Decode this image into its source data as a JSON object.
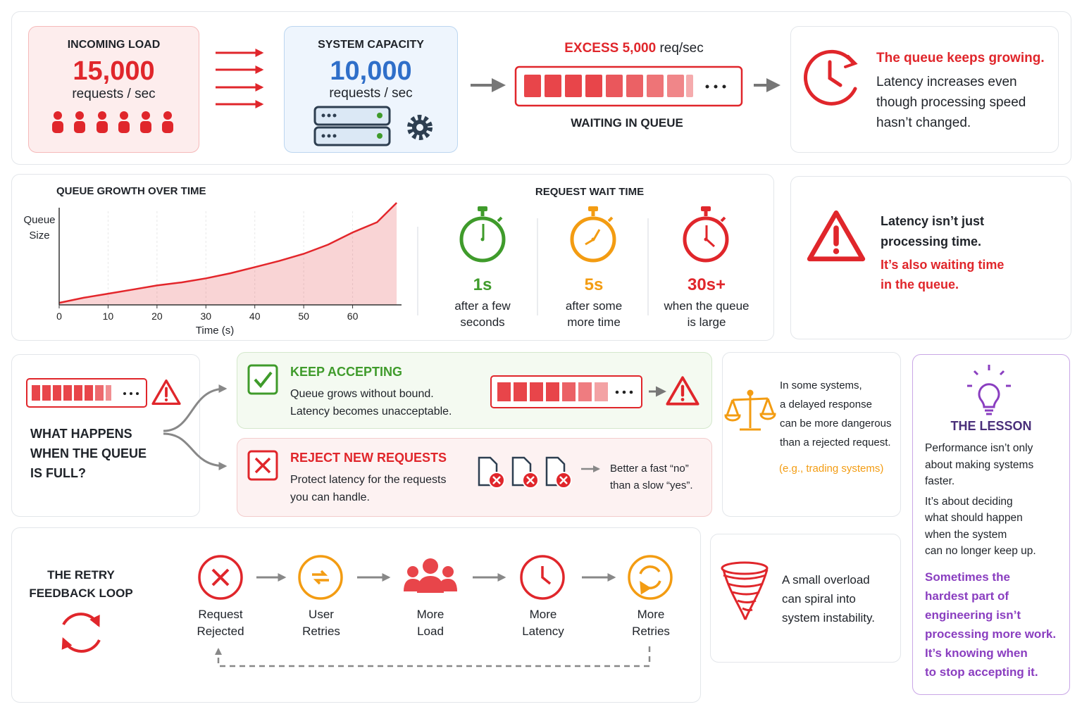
{
  "top": {
    "incoming": {
      "label": "INCOMING LOAD",
      "value": "15,000",
      "unit": "requests / sec"
    },
    "capacity": {
      "label": "SYSTEM CAPACITY",
      "value": "10,000",
      "unit": "requests / sec"
    },
    "excess": {
      "label": "EXCESS",
      "value": "5,000",
      "unit": "req/sec",
      "caption": "WAITING IN QUEUE"
    },
    "growing": {
      "title": "The queue keeps growing.",
      "lines": [
        "Latency increases even",
        "though processing speed",
        "hasn’t changed."
      ]
    }
  },
  "chart_data": {
    "type": "area",
    "title": "QUEUE GROWTH OVER TIME",
    "y_label": "Queue Size",
    "x_label": "Time (s)",
    "x": [
      0,
      5,
      10,
      15,
      20,
      25,
      30,
      35,
      40,
      45,
      50,
      55,
      60,
      65,
      69
    ],
    "values": [
      2,
      7,
      11,
      15,
      19,
      22,
      26,
      31,
      37,
      43,
      50,
      59,
      71,
      81,
      100
    ],
    "color": "#e3262b",
    "xlim": [
      0,
      70
    ],
    "ylim": [
      0,
      100
    ],
    "xticks": [
      0,
      10,
      20,
      30,
      40,
      50,
      60
    ],
    "grid": true
  },
  "wait": {
    "title": "REQUEST WAIT TIME",
    "items": [
      {
        "time": "1s",
        "color": "#3f9b2b",
        "lines": [
          "after a few",
          "seconds"
        ]
      },
      {
        "time": "5s",
        "color": "#f39c12",
        "lines": [
          "after some",
          "more time"
        ]
      },
      {
        "time": "30s+",
        "color": "#e0262b",
        "lines": [
          "when the queue",
          "is large"
        ]
      }
    ]
  },
  "note": {
    "lines": [
      "Latency isn’t just",
      "processing time."
    ],
    "highlight": [
      "It’s also waiting time",
      "in the queue."
    ]
  },
  "full": {
    "question": [
      "WHAT HAPPENS",
      "WHEN THE QUEUE",
      "IS FULL?"
    ],
    "accept": {
      "title": "KEEP ACCEPTING",
      "lines": [
        "Queue grows without bound.",
        "Latency becomes unacceptable."
      ]
    },
    "reject": {
      "title": "REJECT NEW REQUESTS",
      "lines": [
        "Protect latency for the requests",
        "you can handle."
      ],
      "quote": [
        "Better a fast “no”",
        "than a slow “yes”."
      ]
    }
  },
  "danger": {
    "lines": [
      "In some systems,",
      "a delayed response",
      "can be more dangerous",
      "than a rejected request."
    ],
    "example": "(e.g., trading systems)"
  },
  "lesson": {
    "title": "THE LESSON",
    "p1": [
      "Performance isn’t only",
      "about making systems",
      "faster."
    ],
    "p2": [
      "It’s about deciding",
      "what should happen",
      "when the system",
      "can no longer keep up."
    ],
    "emphasis": [
      "Sometimes the",
      "hardest part of",
      "engineering isn’t",
      "processing more work.",
      "It’s knowing when",
      "to stop accepting it."
    ]
  },
  "loop": {
    "title": [
      "THE RETRY",
      "FEEDBACK LOOP"
    ],
    "steps": [
      [
        "Request",
        "Rejected"
      ],
      [
        "User",
        "Retries"
      ],
      [
        "More",
        "Load"
      ],
      [
        "More",
        "Latency"
      ],
      [
        "More",
        "Retries"
      ]
    ]
  },
  "spiral": {
    "lines": [
      "A small overload",
      "can spiral into",
      "system instability."
    ]
  }
}
